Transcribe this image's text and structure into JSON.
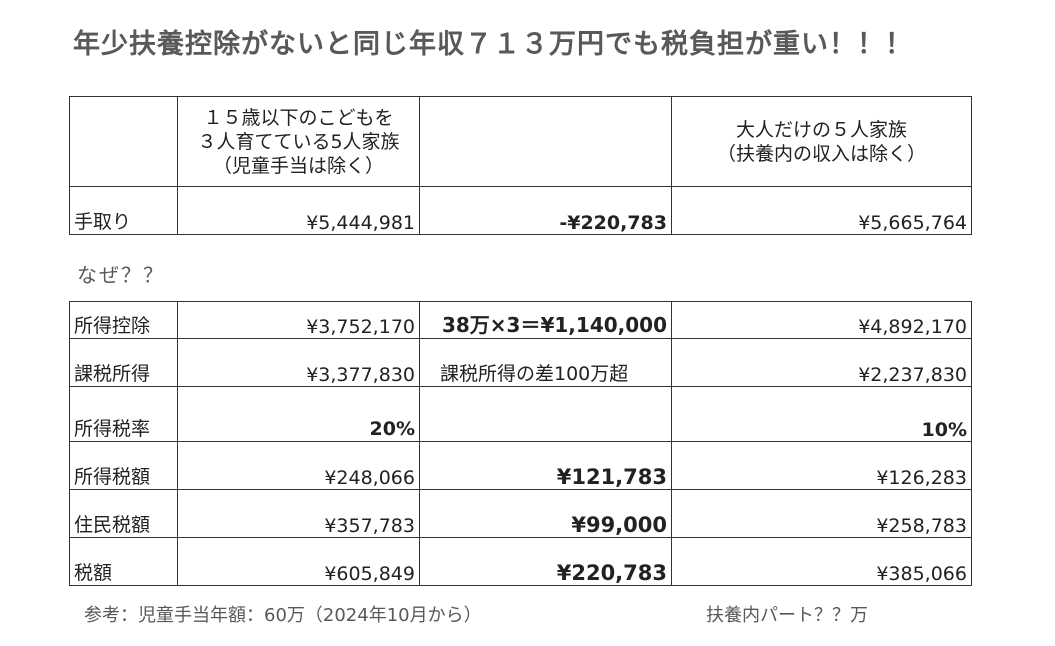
{
  "title": "年少扶養控除がないと同じ年収７１３万円でも税負担が重い！！！",
  "header": {
    "col2_line1": "１５歳以下のこどもを",
    "col2_line2": "３人育てている5人家族",
    "col2_line3": "（児童手当は除く）",
    "col3": "",
    "col4_line1": "大人だけの５人家族",
    "col4_line2": "（扶養内の収入は除く）"
  },
  "take_home": {
    "label": "手取り",
    "family_with_children": "¥5,444,981",
    "difference": "-¥220,783",
    "adult_family": "¥5,665,764"
  },
  "why_text": "なぜ？？",
  "rows": [
    {
      "label": "所得控除",
      "family_with_children": "¥3,752,170",
      "difference": "38万×3＝¥1,140,000",
      "adult_family": "¥4,892,170"
    },
    {
      "label": "課税所得",
      "family_with_children": "¥3,377,830",
      "difference": "課税所得の差100万超",
      "adult_family": "¥2,237,830"
    },
    {
      "label": "所得税率",
      "family_with_children": "20%",
      "difference": "",
      "adult_family": "10%"
    },
    {
      "label": "所得税額",
      "family_with_children": "¥248,066",
      "difference": "¥121,783",
      "adult_family": "¥126,283"
    },
    {
      "label": "住民税額",
      "family_with_children": "¥357,783",
      "difference": "¥99,000",
      "adult_family": "¥258,783"
    },
    {
      "label": "税額",
      "family_with_children": "¥605,849",
      "difference": "¥220,783",
      "adult_family": "¥385,066"
    }
  ],
  "notes": {
    "reference": "参考：児童手当年額：60万（2024年10月から）",
    "part_time": "扶養内パート？？万"
  },
  "colors": {
    "title": "#595959",
    "highlight_red": "#e00000",
    "border": "#333333"
  }
}
